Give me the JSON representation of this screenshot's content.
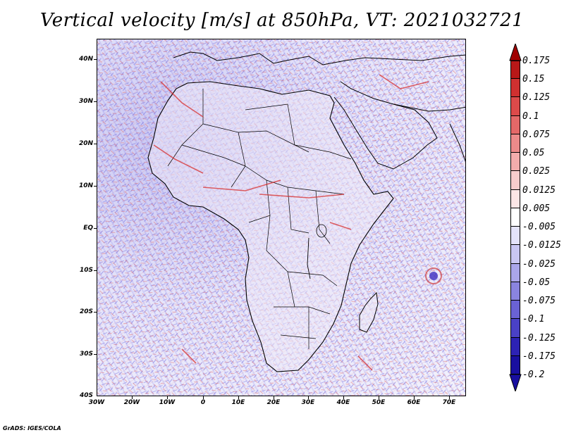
{
  "title": "Vertical velocity [m/s] at 850hPa, VT: 2021032721",
  "credit": "GrADS: IGES/COLA",
  "lat_labels": [
    "40N",
    "30N",
    "20N",
    "10N",
    "EQ",
    "10S",
    "20S",
    "30S",
    "40S"
  ],
  "lon_labels": [
    "30W",
    "20W",
    "10W",
    "0",
    "10E",
    "20E",
    "30E",
    "40E",
    "50E",
    "60E",
    "70E"
  ],
  "colorbar": {
    "labels": [
      "0.175",
      "0.15",
      "0.125",
      "0.1",
      "0.075",
      "0.05",
      "0.025",
      "0.0125",
      "0.005",
      "-0.005",
      "-0.0125",
      "-0.025",
      "-0.05",
      "-0.075",
      "-0.1",
      "-0.125",
      "-0.175",
      "-0.2"
    ],
    "colors": [
      "#a00000",
      "#b81818",
      "#cf3030",
      "#dc4a4a",
      "#e46868",
      "#ec8a8a",
      "#f3acac",
      "#f8cccc",
      "#fce6e6",
      "#ffffff",
      "#e4e3fa",
      "#c9c6f2",
      "#aaa6ea",
      "#8a84e0",
      "#6a62d4",
      "#4a41c6",
      "#2d22b4",
      "#190fa0"
    ]
  },
  "map": {
    "ocean_color": "#ebeafa",
    "land_color": "#ece8f6",
    "positive_color": "#e03a3a",
    "negative_color": "#5a50d8"
  }
}
